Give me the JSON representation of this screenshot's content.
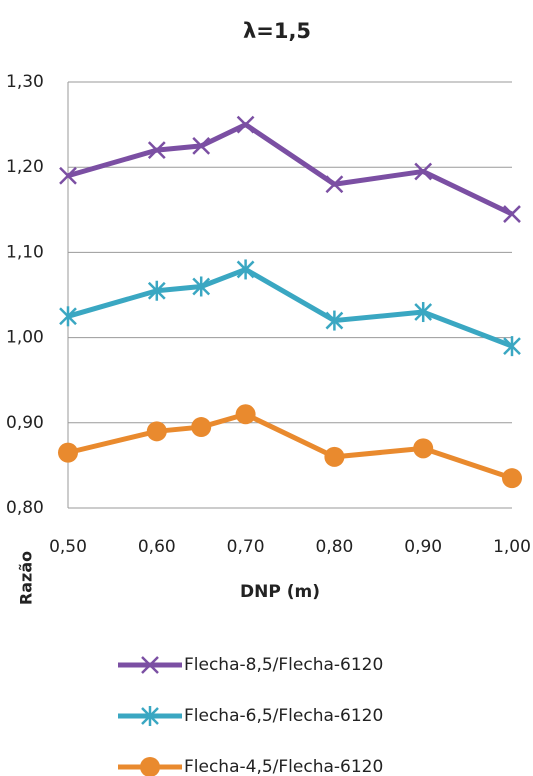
{
  "chart_data": {
    "type": "line",
    "title": "λ=1,5",
    "x_label": "DNP (m)",
    "y_label": "Razão",
    "x": [
      0.5,
      0.6,
      0.65,
      0.7,
      0.8,
      0.9,
      1.0
    ],
    "series": [
      {
        "name": "Flecha-8,5/Flecha-6120",
        "color": "#7b4fa3",
        "marker": "x",
        "values": [
          1.19,
          1.22,
          1.225,
          1.25,
          1.18,
          1.195,
          1.145
        ]
      },
      {
        "name": "Flecha-6,5/Flecha-6120",
        "color": "#3aa7c2",
        "marker": "asterisk",
        "values": [
          1.025,
          1.055,
          1.06,
          1.08,
          1.02,
          1.03,
          0.99
        ]
      },
      {
        "name": "Flecha-4,5/Flecha-6120",
        "color": "#e98a2e",
        "marker": "circle",
        "values": [
          0.865,
          0.89,
          0.895,
          0.91,
          0.86,
          0.87,
          0.835
        ]
      }
    ],
    "xlim": [
      0.5,
      1.0
    ],
    "xticks": [
      {
        "value": 0.5,
        "label": "0,50"
      },
      {
        "value": 0.6,
        "label": "0,60"
      },
      {
        "value": 0.7,
        "label": "0,70"
      },
      {
        "value": 0.8,
        "label": "0,80"
      },
      {
        "value": 0.9,
        "label": "0,90"
      },
      {
        "value": 1.0,
        "label": "1,00"
      }
    ],
    "ylim": [
      0.8,
      1.3
    ],
    "yticks": [
      {
        "value": 0.8,
        "label": "0,80"
      },
      {
        "value": 0.9,
        "label": "0,90"
      },
      {
        "value": 1.0,
        "label": "1,00"
      },
      {
        "value": 1.1,
        "label": "1,10"
      },
      {
        "value": 1.2,
        "label": "1,20"
      },
      {
        "value": 1.3,
        "label": "1,30"
      }
    ],
    "grid": true,
    "legend": "bottom"
  }
}
